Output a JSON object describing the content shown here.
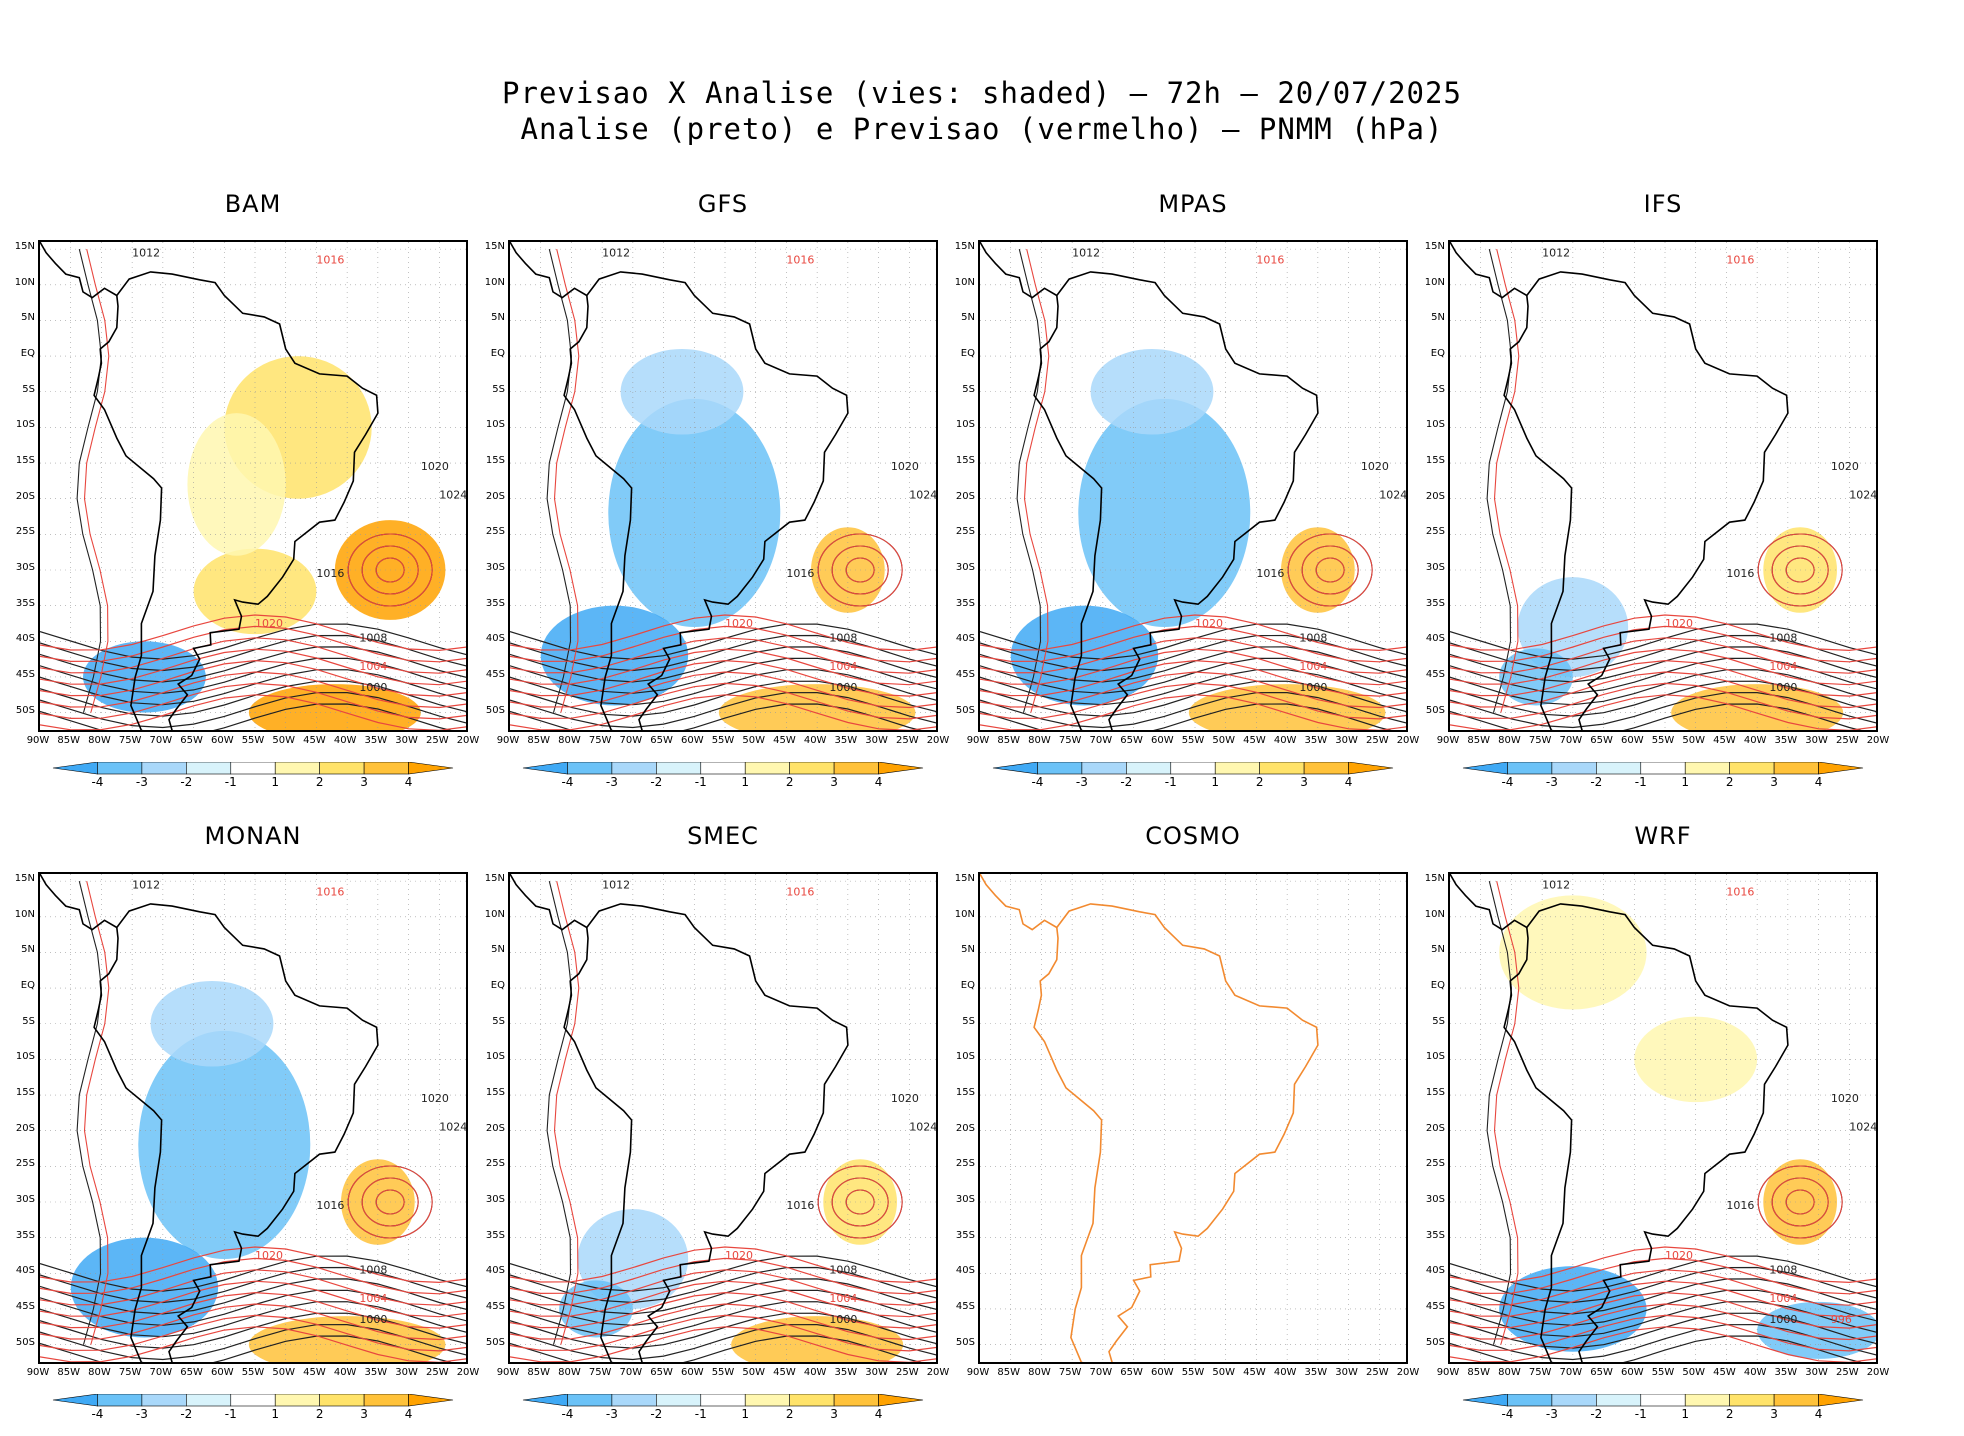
{
  "title_line1": "Previsao X Analise (vies: shaded) – 72h – 20/07/2025",
  "title_line2": "Analise (preto) e Previsao (vermelho) – PNMM (hPa)",
  "latitude_labels": [
    "15N",
    "10N",
    "5N",
    "EQ",
    "5S",
    "10S",
    "15S",
    "20S",
    "25S",
    "30S",
    "35S",
    "40S",
    "45S",
    "50S"
  ],
  "longitude_labels": [
    "90W",
    "85W",
    "80W",
    "75W",
    "70W",
    "65W",
    "60W",
    "55W",
    "50W",
    "45W",
    "40W",
    "35W",
    "30W",
    "25W",
    "20W"
  ],
  "colorbar": {
    "labels": [
      "-4",
      "-3",
      "-2",
      "-1",
      "1",
      "2",
      "3",
      "4"
    ],
    "colors": [
      "#3fa9f5",
      "#6bc2f7",
      "#a9d8fa",
      "#d8f3fb",
      "#ffffff",
      "#fff7b0",
      "#ffe36a",
      "#ffc23a",
      "#ffa200"
    ]
  },
  "colors": {
    "analysis": "#222222",
    "forecast": "#e8473f",
    "cosmo_outline": "#f28a30"
  },
  "panels": [
    {
      "model": "BAM",
      "bias": "warm",
      "labels": [
        [
          "1012",
          "1016",
          "1020"
        ],
        [
          "1016",
          "1020",
          "1024"
        ],
        [
          "1008",
          "1004",
          "1000"
        ]
      ]
    },
    {
      "model": "GFS",
      "bias": "cold",
      "labels": [
        [
          "1012",
          "1016",
          "1020"
        ],
        [
          "1016",
          "1020",
          "1024"
        ],
        [
          "1008",
          "1004",
          "1000"
        ]
      ]
    },
    {
      "model": "MPAS",
      "bias": "cold",
      "labels": [
        [
          "1012",
          "1016",
          "1020"
        ],
        [
          "1016",
          "1020",
          "1024"
        ],
        [
          "1008",
          "1004",
          "1000"
        ]
      ]
    },
    {
      "model": "IFS",
      "bias": "neutral",
      "labels": [
        [
          "1012",
          "1016",
          "1020"
        ],
        [
          "1016",
          "1020",
          "1024"
        ],
        [
          "1008",
          "1004",
          "1000"
        ]
      ]
    },
    {
      "model": "MONAN",
      "bias": "cold",
      "labels": [
        [
          "1012",
          "1016",
          "1020"
        ],
        [
          "1016",
          "1020",
          "1024"
        ],
        [
          "1008",
          "1004",
          "1000"
        ]
      ]
    },
    {
      "model": "SMEC",
      "bias": "neutral",
      "labels": [
        [
          "1012",
          "1016",
          "1020"
        ],
        [
          "1016",
          "1020",
          "1024"
        ],
        [
          "1008",
          "1004",
          "1000"
        ]
      ]
    },
    {
      "model": "COSMO",
      "bias": "none",
      "labels": []
    },
    {
      "model": "WRF",
      "bias": "mixed",
      "labels": [
        [
          "1012",
          "1016",
          "1020"
        ],
        [
          "1016",
          "1020",
          "1024"
        ],
        [
          "1008",
          "1004",
          "1000",
          "996"
        ]
      ]
    }
  ]
}
